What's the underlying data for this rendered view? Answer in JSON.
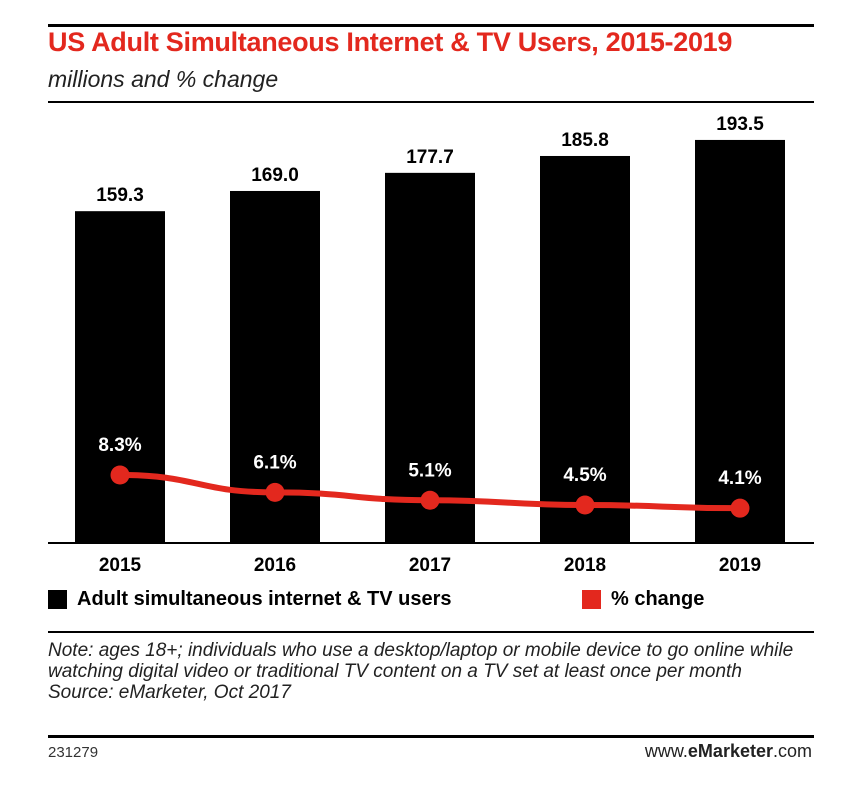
{
  "header": {
    "title": "US Adult Simultaneous Internet & TV Users, 2015-2019",
    "subtitle": "millions and % change"
  },
  "legend": {
    "bar_label": "Adult simultaneous internet & TV users",
    "line_label": "% change"
  },
  "footer": {
    "note": "Note: ages 18+; individuals who use a desktop/laptop or mobile device to go online while watching digital video or traditional TV content on a TV set at least once per month",
    "source": "Source: eMarketer, Oct 2017",
    "chart_id": "231279",
    "brand_prefix": "www.",
    "brand_name": "eMarketer",
    "brand_suffix": ".com"
  },
  "colors": {
    "bar": "#000000",
    "line": "#e3281e",
    "title": "#e3281e"
  },
  "chart_data": {
    "type": "bar",
    "categories": [
      "2015",
      "2016",
      "2017",
      "2018",
      "2019"
    ],
    "series": [
      {
        "name": "Adult simultaneous internet & TV users",
        "type": "bar",
        "values": [
          159.3,
          169.0,
          177.7,
          185.8,
          193.5
        ],
        "labels": [
          "159.3",
          "169.0",
          "177.7",
          "185.8",
          "193.5"
        ]
      },
      {
        "name": "% change",
        "type": "line",
        "values": [
          8.3,
          6.1,
          5.1,
          4.5,
          4.1
        ],
        "labels": [
          "8.3%",
          "6.1%",
          "5.1%",
          "4.5%",
          "4.1%"
        ]
      }
    ],
    "title": "US Adult Simultaneous Internet & TV Users, 2015-2019",
    "subtitle": "millions and % change",
    "legend_position": "bottom-left",
    "grid": false
  }
}
